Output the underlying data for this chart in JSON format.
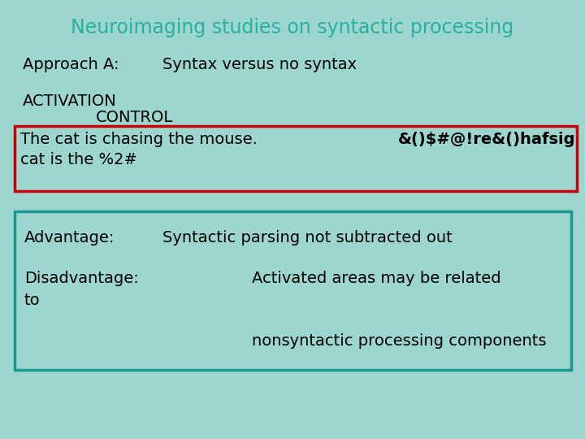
{
  "title": "Neuroimaging studies on syntactic processing",
  "title_color": "#2ab0a0",
  "bg_color": "#9dd5cf",
  "approach_label": "Approach A:",
  "approach_value": "Syntax versus no syntax",
  "activation_label": "ACTIVATION",
  "control_label": "CONTROL",
  "activation_text": "The cat is chasing the mouse.",
  "activation_text2": "cat is the %2#",
  "control_text": "&()$#@!re&()hafsig",
  "red_box_color": "#cc0000",
  "teal_box_color": "#1a9990",
  "advantage_label": "Advantage:",
  "advantage_value": "Syntactic parsing not subtracted out",
  "disadvantage_label": "Disadvantage:",
  "disadvantage_value1": "Activated areas may be related",
  "disadvantage_value2": "to",
  "disadvantage_value3": "nonsyntactic processing components",
  "text_color": "#000000",
  "body_fontsize": 14,
  "title_fontsize": 17
}
